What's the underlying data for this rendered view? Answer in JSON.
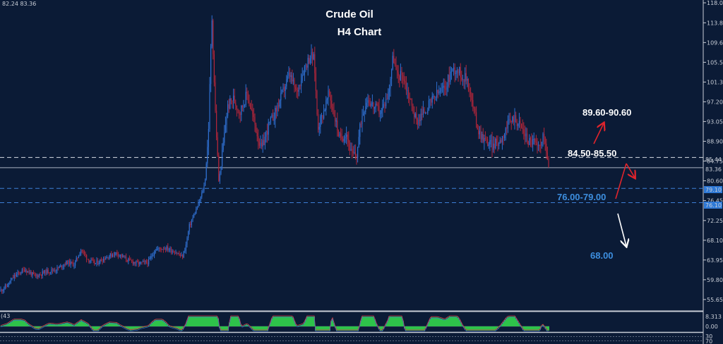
{
  "header": {
    "ohlc_readout": "82.24 83.36"
  },
  "chart_data": {
    "type": "candlestick",
    "title": "Crude Oil",
    "subtitle": "H4 Chart",
    "y_range": [
      54,
      118
    ],
    "y_ticks": [
      "118.00",
      "113.80",
      "109.65",
      "105.50",
      "101.35",
      "97.20",
      "93.05",
      "88.90",
      "84.75",
      "80.60",
      "76.45",
      "72.25",
      "68.10",
      "63.95",
      "59.80",
      "55.65"
    ],
    "current_price": "83.36",
    "upper_dashed_label": "85.44",
    "zone_labels": [
      "79.10",
      "76.10"
    ],
    "annotations": [
      {
        "text": "89.60-90.60",
        "color": "#ffffff"
      },
      {
        "text": "84.50-85.50",
        "color": "#ffffff"
      },
      {
        "text": "76.00-79.00",
        "color": "#3d8fe0"
      },
      {
        "text": "68.00",
        "color": "#3d8fe0"
      }
    ],
    "levels": [
      {
        "label": "85.50",
        "value": 85.5,
        "style": "dashed",
        "color": "#d8dce4"
      },
      {
        "label": "83.36",
        "value": 83.36,
        "style": "solid",
        "color": "#aab3c2"
      },
      {
        "label": "79.00",
        "value": 79.0,
        "style": "dashed",
        "color": "#3d7fd6"
      },
      {
        "label": "76.00",
        "value": 76.0,
        "style": "dashed",
        "color": "#3d7fd6"
      }
    ],
    "price_path": [
      [
        0,
        57.5
      ],
      [
        10,
        58.5
      ],
      [
        20,
        60.5
      ],
      [
        35,
        62
      ],
      [
        50,
        60.5
      ],
      [
        65,
        61.5
      ],
      [
        80,
        62
      ],
      [
        95,
        63.5
      ],
      [
        105,
        63
      ],
      [
        115,
        66.2
      ],
      [
        125,
        64
      ],
      [
        135,
        63.2
      ],
      [
        150,
        64.5
      ],
      [
        165,
        65.5
      ],
      [
        180,
        64
      ],
      [
        195,
        63.2
      ],
      [
        210,
        63.5
      ],
      [
        220,
        66.2
      ],
      [
        235,
        66.5
      ],
      [
        250,
        65.5
      ],
      [
        258,
        64.5
      ],
      [
        263,
        66.8
      ],
      [
        268,
        71
      ],
      [
        275,
        73.5
      ],
      [
        282,
        76
      ],
      [
        290,
        80
      ],
      [
        295,
        90
      ],
      [
        300,
        115.5
      ],
      [
        305,
        95
      ],
      [
        310,
        80
      ],
      [
        316,
        88
      ],
      [
        322,
        96
      ],
      [
        330,
        98
      ],
      [
        340,
        95
      ],
      [
        350,
        99
      ],
      [
        360,
        93
      ],
      [
        370,
        87
      ],
      [
        380,
        92
      ],
      [
        390,
        95
      ],
      [
        400,
        99
      ],
      [
        410,
        103
      ],
      [
        420,
        99
      ],
      [
        430,
        104
      ],
      [
        440,
        107
      ],
      [
        445,
        106
      ],
      [
        450,
        92
      ],
      [
        458,
        95
      ],
      [
        466,
        99
      ],
      [
        474,
        94
      ],
      [
        482,
        89
      ],
      [
        490,
        91
      ],
      [
        498,
        86
      ],
      [
        505,
        86
      ],
      [
        512,
        94
      ],
      [
        520,
        98
      ],
      [
        530,
        96
      ],
      [
        540,
        95
      ],
      [
        550,
        99
      ],
      [
        557,
        107
      ],
      [
        562,
        102.5
      ],
      [
        570,
        103
      ],
      [
        580,
        98
      ],
      [
        590,
        93
      ],
      [
        600,
        95
      ],
      [
        610,
        97
      ],
      [
        620,
        99
      ],
      [
        630,
        100
      ],
      [
        640,
        104
      ],
      [
        648,
        104
      ],
      [
        655,
        102.5
      ],
      [
        662,
        102
      ],
      [
        670,
        96
      ],
      [
        678,
        91
      ],
      [
        688,
        89
      ],
      [
        698,
        88
      ],
      [
        708,
        89
      ],
      [
        718,
        92
      ],
      [
        728,
        94
      ],
      [
        738,
        92
      ],
      [
        748,
        89
      ],
      [
        756,
        89
      ],
      [
        762,
        87
      ],
      [
        768,
        90
      ],
      [
        773,
        88
      ],
      [
        778,
        82.5
      ]
    ],
    "indicator": {
      "label": "(43",
      "tick_labels": [
        "8.313",
        "0.00"
      ],
      "bottom_labels": [
        "30",
        "70"
      ]
    }
  }
}
